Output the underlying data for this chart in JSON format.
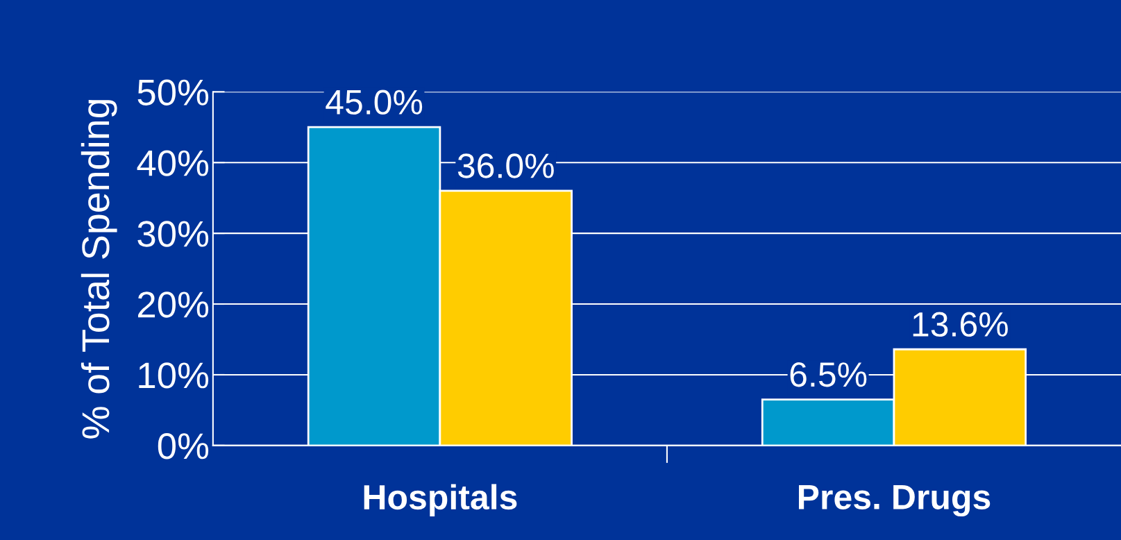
{
  "chart_data": {
    "type": "bar",
    "ylabel": "% of Total Spending",
    "categories": [
      "Hospitals",
      "Pres. Drugs"
    ],
    "series": [
      {
        "color": "#0099cc",
        "values": [
          45.0,
          6.5
        ],
        "value_labels": [
          "45.0%",
          "6.5%"
        ]
      },
      {
        "color": "#ffcc00",
        "values": [
          36.0,
          13.6
        ],
        "value_labels": [
          "36.0%",
          "13.6%"
        ]
      }
    ],
    "ylim": [
      0,
      50
    ],
    "yticks": [
      {
        "value": 0,
        "label": "0%"
      },
      {
        "value": 10,
        "label": "10%"
      },
      {
        "value": 20,
        "label": "20%"
      },
      {
        "value": 30,
        "label": "30%"
      },
      {
        "value": 40,
        "label": "40%"
      },
      {
        "value": 50,
        "label": "50%"
      }
    ],
    "grid": "y",
    "legend": false
  }
}
